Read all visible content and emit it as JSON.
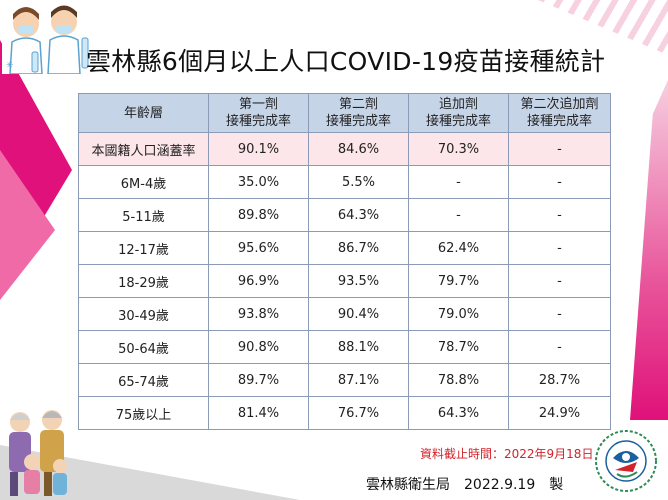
{
  "title": "雲林縣6個月以上人口COVID-19疫苗接種統計",
  "table": {
    "headers": [
      {
        "line1": "年齡層",
        "line2": ""
      },
      {
        "line1": "第一劑",
        "line2": "接種完成率"
      },
      {
        "line1": "第二劑",
        "line2": "接種完成率"
      },
      {
        "line1": "追加劑",
        "line2": "接種完成率"
      },
      {
        "line1": "第二次追加劑",
        "line2": "接種完成率"
      }
    ],
    "rows": [
      [
        "本國籍人口涵蓋率",
        "90.1%",
        "84.6%",
        "70.3%",
        "-"
      ],
      [
        "6M-4歲",
        "35.0%",
        "5.5%",
        "-",
        "-"
      ],
      [
        "5-11歲",
        "89.8%",
        "64.3%",
        "-",
        "-"
      ],
      [
        "12-17歲",
        "95.6%",
        "86.7%",
        "62.4%",
        "-"
      ],
      [
        "18-29歲",
        "96.9%",
        "93.5%",
        "79.7%",
        "-"
      ],
      [
        "30-49歲",
        "93.8%",
        "90.4%",
        "79.0%",
        "-"
      ],
      [
        "50-64歲",
        "90.8%",
        "88.1%",
        "78.7%",
        "-"
      ],
      [
        "65-74歲",
        "89.7%",
        "87.1%",
        "78.8%",
        "28.7%"
      ],
      [
        "75歲以上",
        "81.4%",
        "76.7%",
        "64.3%",
        "24.9%"
      ]
    ]
  },
  "note": "資料截止時間：2022年9月18日",
  "footer": "雲林縣衛生局　2022.9.19　製",
  "colors": {
    "header_bg": "#c6d4e8",
    "highlight_row_bg": "#fce6ea",
    "accent_pink": "#e0117a",
    "note_red": "#d2232a"
  },
  "icons": {
    "top_illustration": "healthcare-workers-illustration",
    "bottom_illustration": "family-illustration",
    "logo": "yunlin-health-bureau-logo"
  }
}
